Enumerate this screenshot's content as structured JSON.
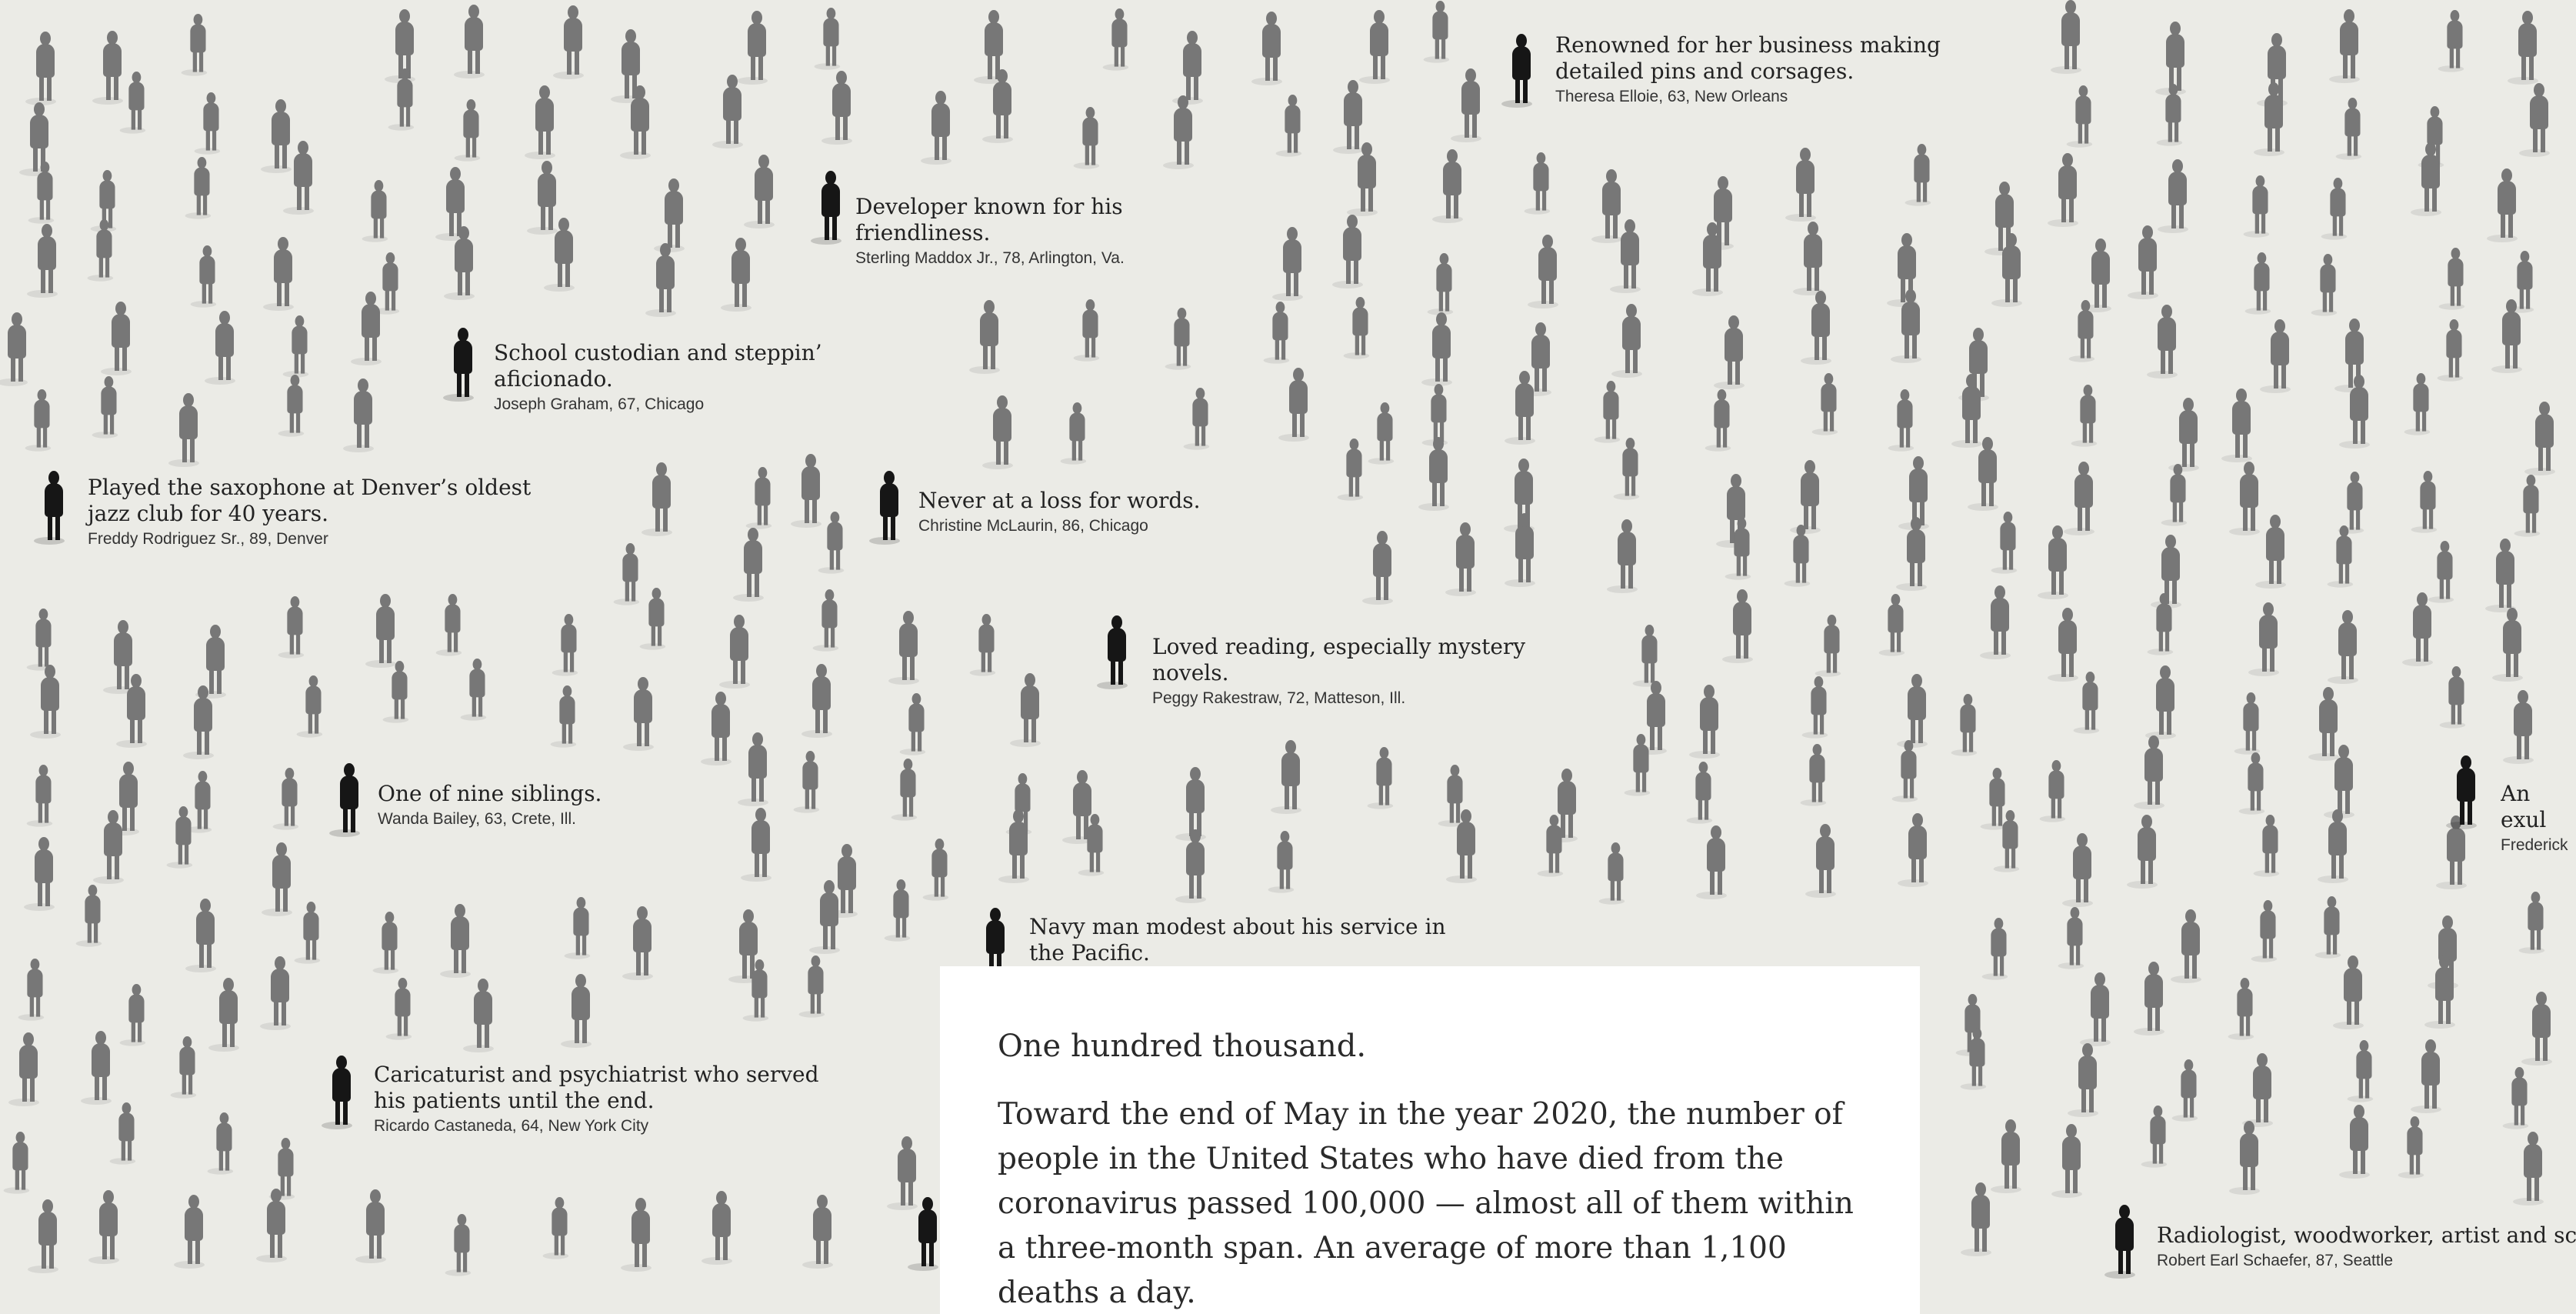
{
  "people": [
    {
      "description": "Renowned for her business making detailed pins and corsages.",
      "details": "Theresa Elloie, 63, New Orleans"
    },
    {
      "description": "Developer known for his friendliness.",
      "details": "Sterling Maddox Jr., 78, Arlington, Va."
    },
    {
      "description": "School custodian and steppin’ aficionado.",
      "details": "Joseph Graham, 67, Chicago"
    },
    {
      "description": "Played the saxophone at Denver’s oldest jazz club for 40 years.",
      "details": "Freddy Rodriguez Sr., 89, Denver"
    },
    {
      "description": "Never at a loss for words.",
      "details": "Christine McLaurin, 86, Chicago"
    },
    {
      "description": "Loved reading, especially mystery novels.",
      "details": "Peggy Rakestraw, 72, Matteson, Ill."
    },
    {
      "description": "One of nine siblings.",
      "details": "Wanda Bailey, 63, Crete, Ill."
    },
    {
      "description": "An exul",
      "details": "Frederick"
    },
    {
      "description": "Navy man modest about his service in the Pacific.",
      "details": ""
    },
    {
      "description": "Caricaturist and psychiatrist who served his patients until the end.",
      "details": "Ricardo Castaneda, 64, New York City"
    },
    {
      "description": "Radiologist, woodworker, artist and schol",
      "details": "Robert Earl Schaefer, 87, Seattle"
    }
  ],
  "intro": {
    "lead": "One hundred thousand.",
    "body": "Toward the end of May in the year 2020, the number of people in the United States who have died from the coronavirus passed 100,000 — almost all of them within a three-month span. An average of more than 1,100 deaths a day."
  },
  "colors": {
    "background": "#ebebe6",
    "figure": "#777777",
    "highlighted_figure": "#161616",
    "card": "#ffffff",
    "text": "#222222"
  }
}
